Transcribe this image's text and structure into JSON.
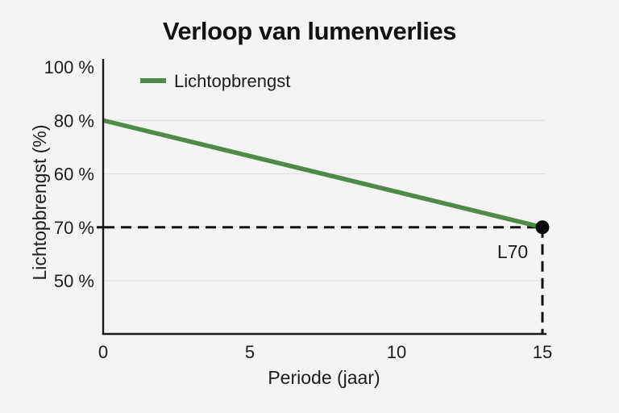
{
  "page": {
    "background": "#f4f4f4"
  },
  "chart_data": {
    "type": "line",
    "title": "Verloop van lumenverlies",
    "xlabel": "Periode (jaar)",
    "ylabel": "Lichtopbrengst (%)",
    "x_ticks": [
      "0",
      "5",
      "10",
      "15"
    ],
    "y_ticks": [
      "100 %",
      "80 %",
      "60 %",
      "70 %",
      "50 %"
    ],
    "xlim": [
      0,
      15
    ],
    "gridlines_at": [
      "80 %",
      "60 %",
      "70 %",
      "50 %"
    ],
    "legend": {
      "label": "Lichtopbrengst",
      "position": "top-left"
    },
    "series": [
      {
        "name": "Lichtopbrengst",
        "color": "#4e8b46",
        "x": [
          0,
          15
        ],
        "y": [
          80,
          70
        ]
      }
    ],
    "annotation": {
      "label": "L70",
      "x": 15,
      "y": 70
    },
    "guides": {
      "style": "dashed",
      "horizontal_y": 70,
      "vertical_x": 15,
      "color": "#111111"
    },
    "axis_color": "#1a1a1a",
    "grid_color": "#e1e1e1",
    "point_color": "#0a0a0a"
  }
}
